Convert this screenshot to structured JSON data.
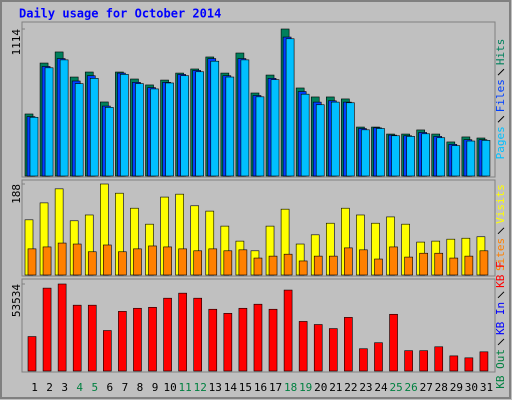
{
  "chart_data": [
    {
      "type": "bar",
      "title": "Daily usage for October 2014",
      "ylim": [
        0,
        1114
      ],
      "yticks": [
        1114
      ],
      "series": [
        {
          "name": "Hits",
          "color": "#00805c",
          "values": [
            470,
            856,
            940,
            750,
            788,
            561,
            788,
            735,
            690,
            727,
            780,
            811,
            902,
            780,
            932,
            629,
            765,
            1114,
            667,
            599,
            599,
            584,
            371,
            371,
            318,
            318,
            349,
            318,
            258,
            296,
            288
          ]
        },
        {
          "name": "Files",
          "color": "#0040ff",
          "values": [
            450,
            830,
            890,
            720,
            760,
            530,
            780,
            710,
            670,
            710,
            770,
            800,
            890,
            760,
            890,
            610,
            740,
            1053,
            640,
            560,
            570,
            560,
            360,
            365,
            310,
            305,
            330,
            300,
            240,
            275,
            275
          ]
        },
        {
          "name": "Pages",
          "color": "#00c0ff",
          "values": [
            445,
            820,
            880,
            700,
            740,
            520,
            770,
            700,
            660,
            705,
            760,
            790,
            870,
            750,
            880,
            600,
            730,
            1040,
            620,
            540,
            560,
            555,
            350,
            360,
            305,
            300,
            320,
            290,
            230,
            265,
            270
          ]
        }
      ]
    },
    {
      "type": "bar",
      "ylim": [
        0,
        188
      ],
      "yticks": [
        188
      ],
      "series": [
        {
          "name": "Visits",
          "color": "#ffff00",
          "values": [
            114,
            149,
            178,
            112,
            124,
            188,
            169,
            138,
            105,
            161,
            167,
            143,
            132,
            101,
            70,
            50,
            101,
            136,
            64,
            83,
            107,
            138,
            124,
            107,
            120,
            105,
            68,
            70,
            74,
            76,
            79
          ]
        },
        {
          "name": "Sites",
          "color": "#ff8000",
          "values": [
            54,
            58,
            66,
            64,
            48,
            62,
            48,
            54,
            60,
            58,
            54,
            50,
            54,
            50,
            52,
            35,
            39,
            43,
            29,
            39,
            39,
            56,
            52,
            33,
            58,
            37,
            45,
            45,
            35,
            39,
            50
          ]
        }
      ]
    },
    {
      "type": "bar",
      "ylim": [
        0,
        53534
      ],
      "yticks": [
        53534
      ],
      "categories": [
        "1",
        "2",
        "3",
        "4",
        "5",
        "6",
        "7",
        "8",
        "9",
        "10",
        "11",
        "12",
        "13",
        "14",
        "15",
        "16",
        "17",
        "18",
        "19",
        "20",
        "21",
        "22",
        "23",
        "24",
        "25",
        "26",
        "27",
        "28",
        "29",
        "30",
        "31"
      ],
      "category_colors": [
        "#000000",
        "#000000",
        "#000000",
        "#008040",
        "#008040",
        "#000000",
        "#000000",
        "#000000",
        "#000000",
        "#000000",
        "#008040",
        "#008040",
        "#000000",
        "#000000",
        "#000000",
        "#000000",
        "#000000",
        "#008040",
        "#008040",
        "#000000",
        "#000000",
        "#000000",
        "#000000",
        "#000000",
        "#008040",
        "#008040",
        "#000000",
        "#000000",
        "#000000",
        "#000000",
        "#000000"
      ],
      "series": [
        {
          "name": "KB F",
          "color": "#ff0000",
          "values": [
            21200,
            51000,
            53534,
            40500,
            40500,
            24900,
            36700,
            38600,
            39200,
            44800,
            47900,
            44800,
            38000,
            35500,
            38600,
            41100,
            38000,
            49800,
            30500,
            28600,
            26100,
            33000,
            13700,
            17400,
            34900,
            12500,
            12500,
            14900,
            9300,
            8100,
            11800
          ]
        },
        {
          "name": "KB In",
          "color": "#0000ff",
          "values": [
            0,
            0,
            0,
            0,
            0,
            0,
            0,
            0,
            0,
            0,
            0,
            0,
            0,
            0,
            0,
            0,
            0,
            0,
            0,
            0,
            0,
            0,
            0,
            0,
            0,
            0,
            0,
            0,
            0,
            0,
            0
          ]
        },
        {
          "name": "KB Out",
          "color": "#008040",
          "values": [
            0,
            0,
            0,
            0,
            0,
            0,
            0,
            0,
            0,
            0,
            0,
            0,
            0,
            0,
            0,
            0,
            0,
            0,
            0,
            0,
            0,
            0,
            0,
            0,
            0,
            0,
            0,
            0,
            0,
            0,
            0
          ]
        }
      ]
    }
  ]
}
